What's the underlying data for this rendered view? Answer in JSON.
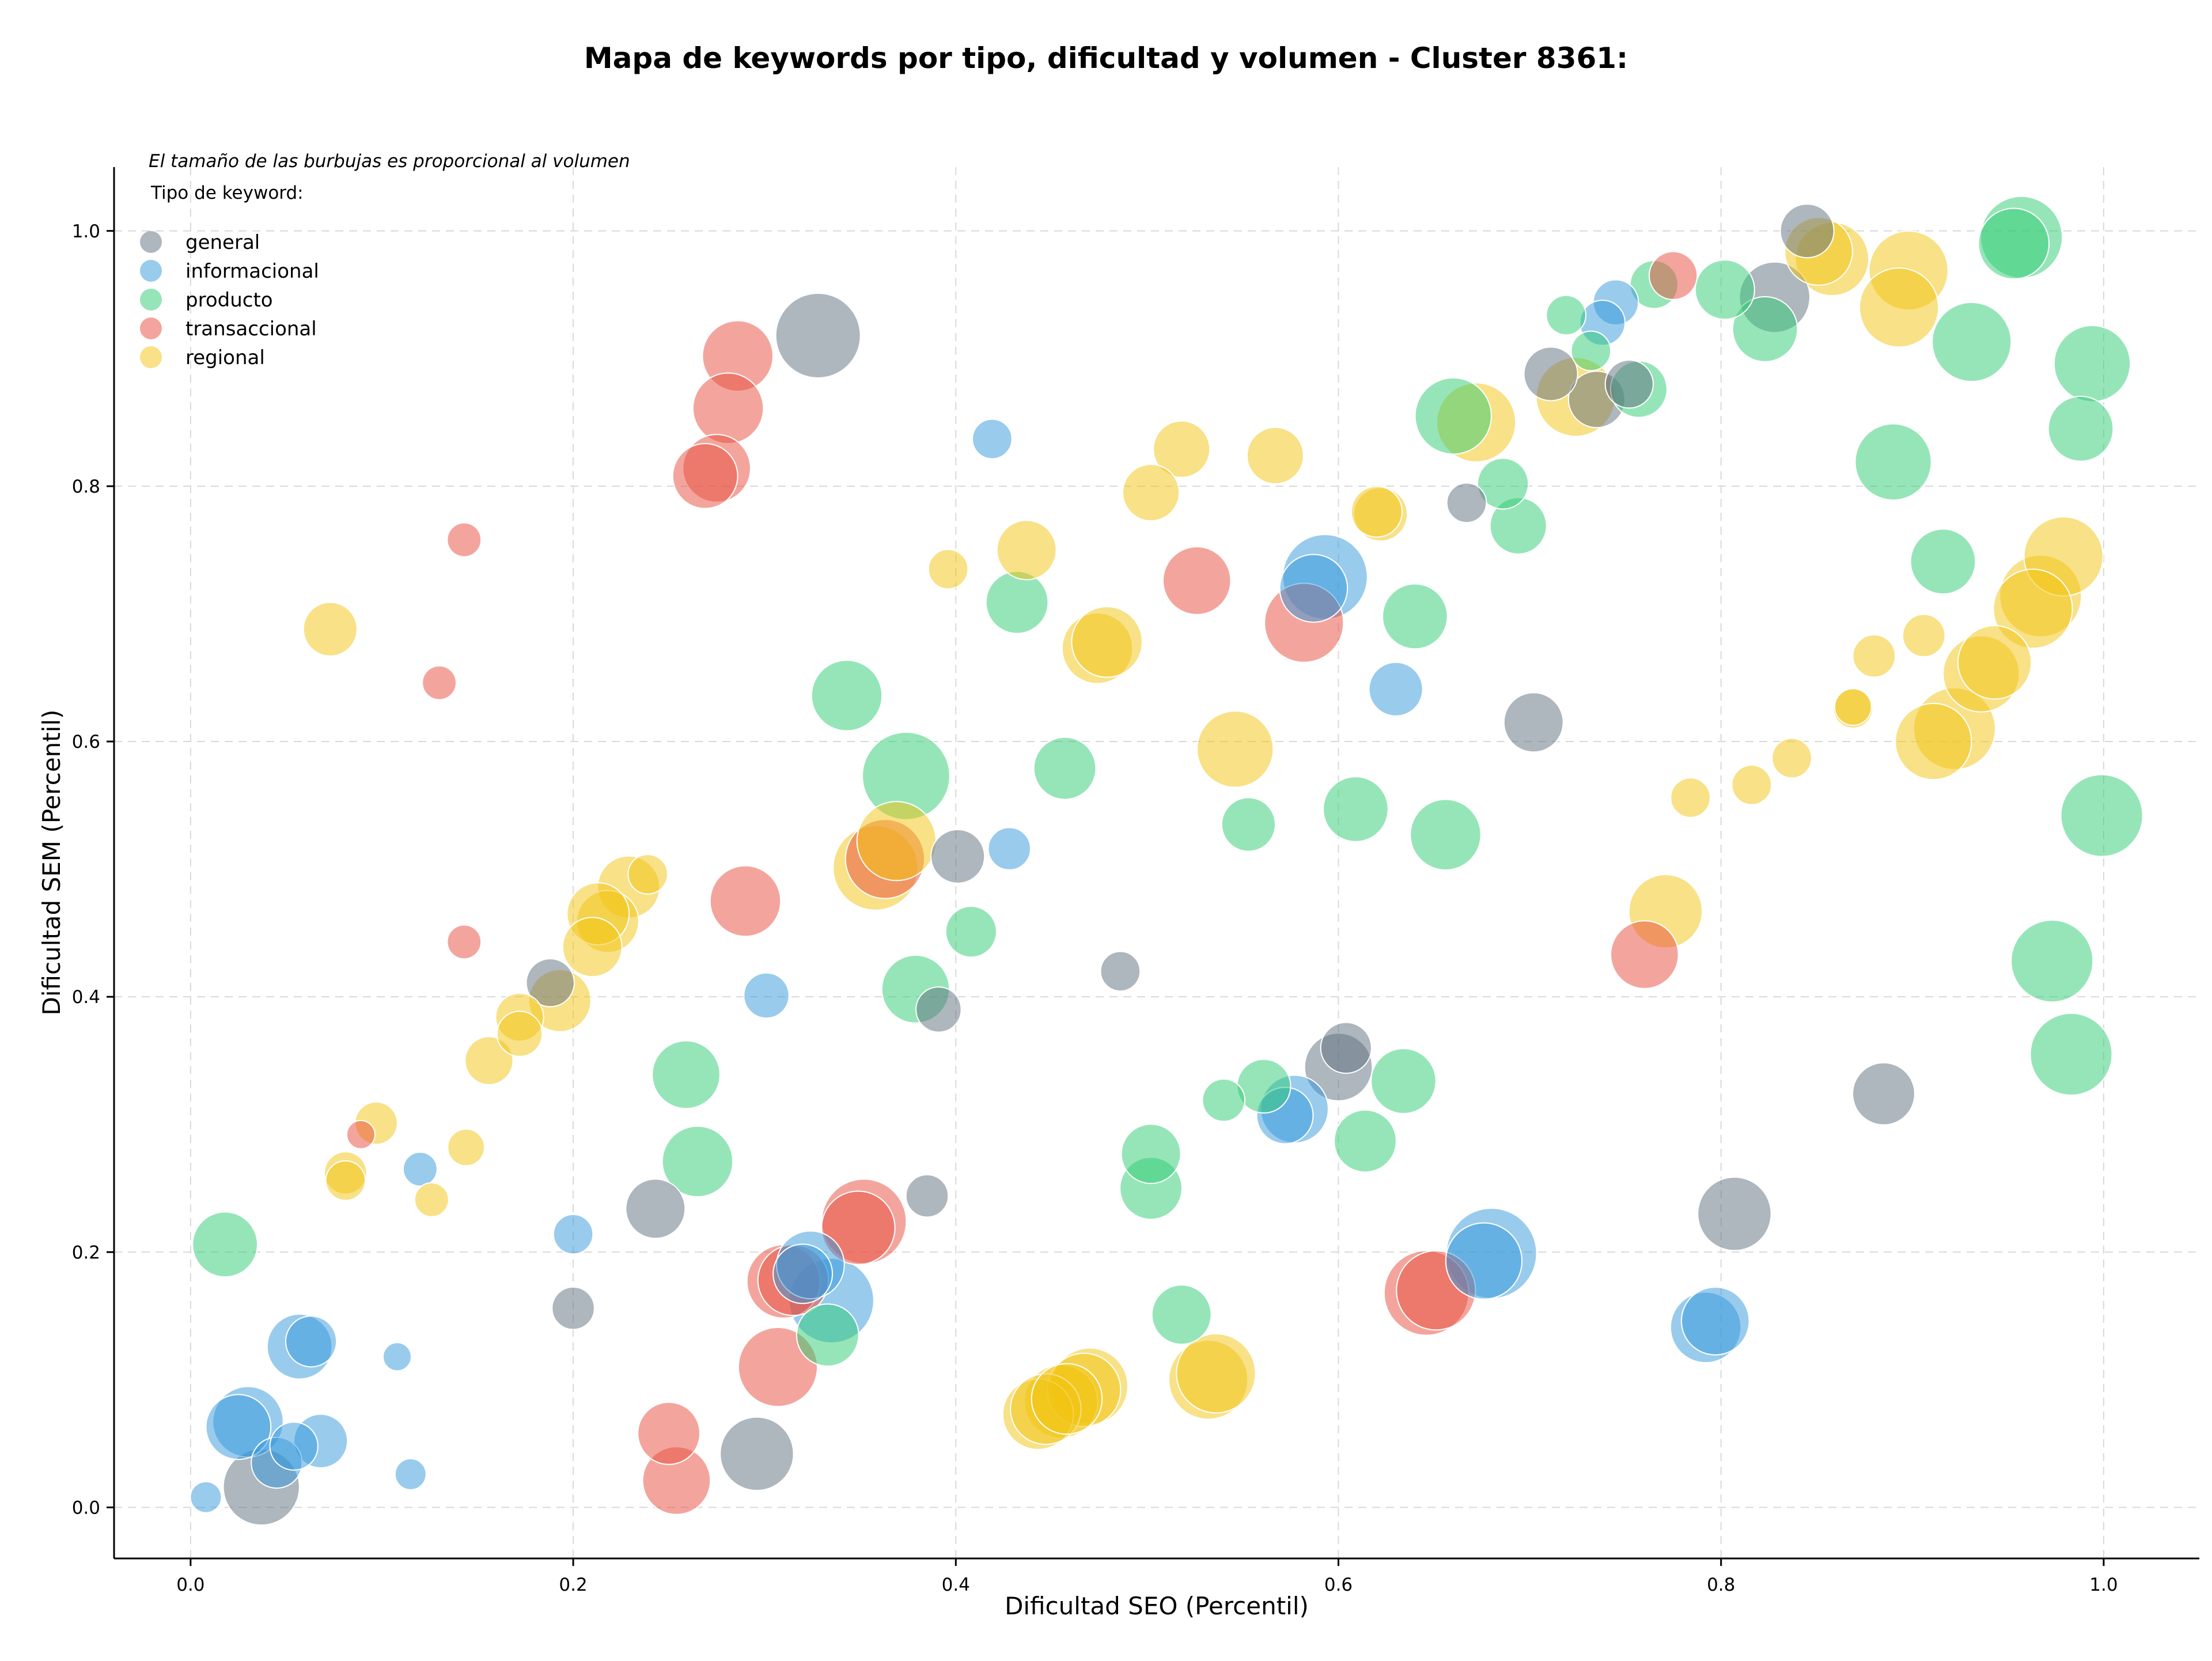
{
  "chart_data": {
    "type": "scatter",
    "title": "Mapa de keywords por tipo, dificultad y volumen - Cluster 8361:",
    "xlabel": "Dificultad SEO (Percentil)",
    "ylabel": "Dificultad SEM (Percentil)",
    "xlim": [
      -0.04,
      1.05
    ],
    "ylim": [
      -0.04,
      1.05
    ],
    "xticks": [
      0.0,
      0.2,
      0.4,
      0.6,
      0.8,
      1.0
    ],
    "yticks": [
      0.0,
      0.2,
      0.4,
      0.6,
      0.8,
      1.0
    ],
    "xtick_labels": [
      "0.0",
      "0.2",
      "0.4",
      "0.6",
      "0.8",
      "1.0"
    ],
    "ytick_labels": [
      "0.0",
      "0.2",
      "0.4",
      "0.6",
      "0.8",
      "1.0"
    ],
    "grid": true,
    "note": "El tamaño de las burbujas es proporcional al volumen",
    "legend": {
      "title": "Tipo de keyword:",
      "placement": "top-left"
    },
    "series": [
      {
        "name": "general",
        "color": "#5d6d7e",
        "points": [
          [
            0.328,
            0.918,
            30
          ],
          [
            0.845,
            1.0,
            19
          ],
          [
            0.828,
            0.948,
            25
          ],
          [
            0.711,
            0.888,
            19
          ],
          [
            0.735,
            0.868,
            20
          ],
          [
            0.752,
            0.88,
            17
          ],
          [
            0.667,
            0.787,
            14
          ],
          [
            0.702,
            0.615,
            21
          ],
          [
            0.401,
            0.51,
            19
          ],
          [
            0.391,
            0.39,
            16
          ],
          [
            0.188,
            0.411,
            17
          ],
          [
            0.486,
            0.42,
            14
          ],
          [
            0.604,
            0.36,
            18
          ],
          [
            0.6,
            0.345,
            24
          ],
          [
            0.885,
            0.324,
            22
          ],
          [
            0.243,
            0.234,
            21
          ],
          [
            0.385,
            0.244,
            15
          ],
          [
            0.807,
            0.23,
            26
          ],
          [
            0.2,
            0.156,
            15
          ],
          [
            0.296,
            0.042,
            26
          ],
          [
            0.037,
            0.016,
            27
          ]
        ]
      },
      {
        "name": "informacional",
        "color": "#3498db",
        "points": [
          [
            0.745,
            0.944,
            16
          ],
          [
            0.738,
            0.928,
            16
          ],
          [
            0.419,
            0.837,
            14
          ],
          [
            0.593,
            0.729,
            30
          ],
          [
            0.587,
            0.72,
            24
          ],
          [
            0.63,
            0.641,
            19
          ],
          [
            0.428,
            0.516,
            15
          ],
          [
            0.301,
            0.401,
            16
          ],
          [
            0.577,
            0.312,
            24
          ],
          [
            0.572,
            0.307,
            20
          ],
          [
            0.2,
            0.214,
            14
          ],
          [
            0.12,
            0.265,
            12
          ],
          [
            0.68,
            0.199,
            32
          ],
          [
            0.676,
            0.193,
            27
          ],
          [
            0.324,
            0.19,
            24
          ],
          [
            0.32,
            0.183,
            21
          ],
          [
            0.335,
            0.162,
            30
          ],
          [
            0.797,
            0.146,
            24
          ],
          [
            0.792,
            0.141,
            25
          ],
          [
            0.057,
            0.126,
            23
          ],
          [
            0.063,
            0.13,
            18
          ],
          [
            0.108,
            0.118,
            10
          ],
          [
            0.03,
            0.067,
            25
          ],
          [
            0.025,
            0.063,
            23
          ],
          [
            0.054,
            0.048,
            17
          ],
          [
            0.068,
            0.052,
            19
          ],
          [
            0.045,
            0.035,
            18
          ],
          [
            0.115,
            0.026,
            11
          ],
          [
            0.008,
            0.008,
            11
          ]
        ]
      },
      {
        "name": "producto",
        "color": "#2ecc71",
        "points": [
          [
            0.957,
            0.995,
            29
          ],
          [
            0.953,
            0.99,
            25
          ],
          [
            0.802,
            0.954,
            21
          ],
          [
            0.765,
            0.958,
            17
          ],
          [
            0.719,
            0.934,
            14
          ],
          [
            0.732,
            0.906,
            14
          ],
          [
            0.823,
            0.923,
            23
          ],
          [
            0.931,
            0.913,
            28
          ],
          [
            0.994,
            0.896,
            27
          ],
          [
            0.988,
            0.845,
            23
          ],
          [
            0.89,
            0.819,
            27
          ],
          [
            0.757,
            0.876,
            20
          ],
          [
            0.66,
            0.855,
            27
          ],
          [
            0.686,
            0.802,
            18
          ],
          [
            0.694,
            0.769,
            20
          ],
          [
            0.916,
            0.741,
            23
          ],
          [
            0.64,
            0.698,
            23
          ],
          [
            0.432,
            0.709,
            22
          ],
          [
            0.343,
            0.636,
            25
          ],
          [
            0.374,
            0.573,
            31
          ],
          [
            0.457,
            0.579,
            22
          ],
          [
            0.609,
            0.547,
            23
          ],
          [
            0.656,
            0.527,
            25
          ],
          [
            0.553,
            0.535,
            19
          ],
          [
            0.999,
            0.542,
            29
          ],
          [
            0.408,
            0.451,
            18
          ],
          [
            0.379,
            0.406,
            24
          ],
          [
            0.259,
            0.339,
            24
          ],
          [
            0.973,
            0.428,
            29
          ],
          [
            0.983,
            0.355,
            29
          ],
          [
            0.634,
            0.334,
            23
          ],
          [
            0.561,
            0.33,
            19
          ],
          [
            0.54,
            0.319,
            15
          ],
          [
            0.614,
            0.287,
            22
          ],
          [
            0.502,
            0.277,
            21
          ],
          [
            0.502,
            0.25,
            22
          ],
          [
            0.265,
            0.271,
            25
          ],
          [
            0.333,
            0.135,
            22
          ],
          [
            0.518,
            0.151,
            21
          ],
          [
            0.018,
            0.206,
            23
          ]
        ]
      },
      {
        "name": "transaccional",
        "color": "#e74c3c",
        "points": [
          [
            0.775,
            0.965,
            17
          ],
          [
            0.286,
            0.902,
            25
          ],
          [
            0.281,
            0.861,
            25
          ],
          [
            0.275,
            0.814,
            24
          ],
          [
            0.269,
            0.808,
            23
          ],
          [
            0.143,
            0.758,
            12
          ],
          [
            0.526,
            0.726,
            24
          ],
          [
            0.582,
            0.693,
            28
          ],
          [
            0.13,
            0.646,
            12
          ],
          [
            0.363,
            0.508,
            28
          ],
          [
            0.29,
            0.475,
            25
          ],
          [
            0.143,
            0.443,
            12
          ],
          [
            0.76,
            0.433,
            24
          ],
          [
            0.089,
            0.292,
            10
          ],
          [
            0.352,
            0.224,
            30
          ],
          [
            0.349,
            0.219,
            26
          ],
          [
            0.315,
            0.178,
            25
          ],
          [
            0.31,
            0.177,
            26
          ],
          [
            0.651,
            0.17,
            28
          ],
          [
            0.646,
            0.168,
            30
          ],
          [
            0.307,
            0.11,
            28
          ],
          [
            0.25,
            0.058,
            22
          ],
          [
            0.254,
            0.021,
            24
          ]
        ]
      },
      {
        "name": "regional",
        "color": "#f1c40f",
        "points": [
          [
            0.851,
            0.984,
            24
          ],
          [
            0.858,
            0.978,
            26
          ],
          [
            0.898,
            0.969,
            28
          ],
          [
            0.893,
            0.94,
            28
          ],
          [
            0.724,
            0.87,
            28
          ],
          [
            0.672,
            0.85,
            28
          ],
          [
            0.518,
            0.829,
            20
          ],
          [
            0.567,
            0.824,
            20
          ],
          [
            0.502,
            0.795,
            20
          ],
          [
            0.62,
            0.78,
            18
          ],
          [
            0.622,
            0.778,
            19
          ],
          [
            0.437,
            0.75,
            21
          ],
          [
            0.396,
            0.735,
            14
          ],
          [
            0.979,
            0.745,
            28
          ],
          [
            0.967,
            0.714,
            29
          ],
          [
            0.963,
            0.704,
            28
          ],
          [
            0.906,
            0.683,
            15
          ],
          [
            0.88,
            0.667,
            15
          ],
          [
            0.474,
            0.673,
            25
          ],
          [
            0.479,
            0.678,
            25
          ],
          [
            0.073,
            0.688,
            19
          ],
          [
            0.546,
            0.594,
            27
          ],
          [
            0.943,
            0.662,
            26
          ],
          [
            0.936,
            0.653,
            27
          ],
          [
            0.869,
            0.626,
            14
          ],
          [
            0.869,
            0.627,
            13
          ],
          [
            0.911,
            0.6,
            27
          ],
          [
            0.922,
            0.61,
            29
          ],
          [
            0.369,
            0.522,
            28
          ],
          [
            0.358,
            0.501,
            30
          ],
          [
            0.837,
            0.587,
            14
          ],
          [
            0.816,
            0.566,
            14
          ],
          [
            0.784,
            0.556,
            14
          ],
          [
            0.771,
            0.467,
            26
          ],
          [
            0.239,
            0.496,
            14
          ],
          [
            0.229,
            0.486,
            22
          ],
          [
            0.218,
            0.459,
            22
          ],
          [
            0.213,
            0.465,
            22
          ],
          [
            0.21,
            0.439,
            21
          ],
          [
            0.193,
            0.397,
            22
          ],
          [
            0.172,
            0.384,
            17
          ],
          [
            0.172,
            0.371,
            16
          ],
          [
            0.156,
            0.35,
            17
          ],
          [
            0.144,
            0.282,
            13
          ],
          [
            0.097,
            0.301,
            15
          ],
          [
            0.081,
            0.262,
            15
          ],
          [
            0.081,
            0.256,
            14
          ],
          [
            0.126,
            0.241,
            12
          ],
          [
            0.443,
            0.073,
            25
          ],
          [
            0.447,
            0.077,
            25
          ],
          [
            0.455,
            0.083,
            26
          ],
          [
            0.458,
            0.085,
            25
          ],
          [
            0.467,
            0.092,
            26
          ],
          [
            0.47,
            0.095,
            27
          ],
          [
            0.532,
            0.1,
            28
          ],
          [
            0.536,
            0.105,
            28
          ]
        ]
      }
    ]
  }
}
